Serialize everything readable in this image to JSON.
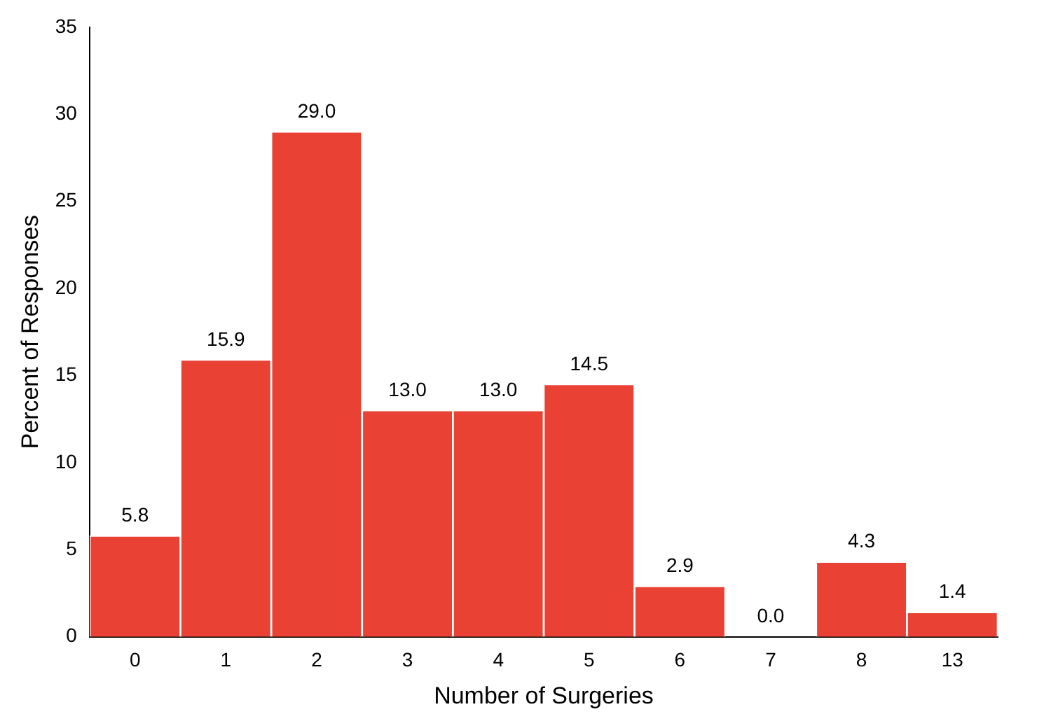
{
  "chart_data": {
    "type": "bar",
    "xlabel": "Number of Surgeries",
    "ylabel": "Percent of Responses",
    "categories": [
      "0",
      "1",
      "2",
      "3",
      "4",
      "5",
      "6",
      "7",
      "8",
      "13"
    ],
    "values": [
      5.8,
      15.9,
      29.0,
      13.0,
      13.0,
      14.5,
      2.9,
      0.0,
      4.3,
      1.4
    ],
    "value_labels": [
      "5.8",
      "15.9",
      "29.0",
      "13.0",
      "13.0",
      "14.5",
      "2.9",
      "0.0",
      "4.3",
      "1.4"
    ],
    "color": "#e94235",
    "ylim": [
      0,
      35
    ],
    "yticks": [
      0,
      5,
      10,
      15,
      20,
      25,
      30,
      35
    ],
    "grid": false,
    "legend": false
  }
}
